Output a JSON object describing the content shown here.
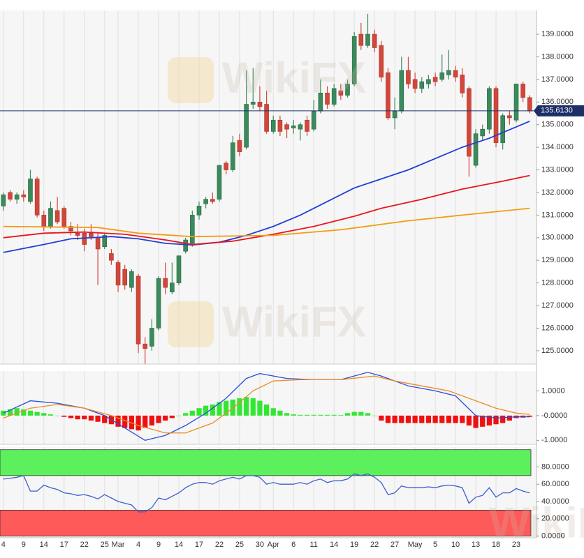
{
  "chart_data": [
    {
      "type": "candlestick",
      "open": [
        131.4,
        132.0,
        131.7,
        131.9,
        131.6,
        132.6,
        131.0,
        130.5,
        131.2,
        131.3,
        130.5,
        130.2,
        130.2,
        130.2,
        130.0,
        129.6,
        129.3,
        128.9,
        128.6,
        127.8,
        128.3,
        125.3,
        125.2,
        126.0,
        128.2,
        127.6,
        128.0,
        129.4,
        129.7,
        131.0,
        131.5,
        131.7,
        131.7,
        133.3,
        133.0,
        134.3,
        134.0,
        135.9,
        136.0,
        135.9,
        134.7,
        135.2,
        135.0,
        134.85,
        134.8,
        135.2,
        134.8,
        135.6,
        136.4,
        135.9,
        136.5,
        136.3,
        136.8,
        139.0,
        138.5,
        139.0,
        138.5,
        137.3,
        135.3,
        135.6,
        137.4,
        137.0,
        136.6,
        136.8,
        137.1,
        137.0,
        137.2,
        137.4,
        137.2,
        136.6,
        133.2,
        134.5,
        134.8,
        136.6,
        134.2,
        135.4,
        135.2,
        136.8,
        136.2
      ],
      "high": [
        132.0,
        132.1,
        132.0,
        132.1,
        133.0,
        132.7,
        131.2,
        131.6,
        131.8,
        131.4,
        130.7,
        130.6,
        130.4,
        130.6,
        130.2,
        130.2,
        129.5,
        129.0,
        128.8,
        128.6,
        128.4,
        125.6,
        126.4,
        128.3,
        128.9,
        128.9,
        129.2,
        130.0,
        131.2,
        131.6,
        131.8,
        132.0,
        133.2,
        133.4,
        134.5,
        134.6,
        137.4,
        137.5,
        136.7,
        136.5,
        135.4,
        135.4,
        135.1,
        135.2,
        135.1,
        135.4,
        136.1,
        137.0,
        136.7,
        136.8,
        136.8,
        137.0,
        139.1,
        139.5,
        139.9,
        139.2,
        138.7,
        137.5,
        136.2,
        138.0,
        138.0,
        137.3,
        137.1,
        137.2,
        137.3,
        138.1,
        138.3,
        137.6,
        137.5,
        136.7,
        134.8,
        135.0,
        136.7,
        136.7,
        135.5,
        135.6,
        136.8,
        136.9,
        136.3
      ],
      "low": [
        131.2,
        131.6,
        131.5,
        131.6,
        131.5,
        130.9,
        130.3,
        130.4,
        130.6,
        130.4,
        130.1,
        129.9,
        129.4,
        129.9,
        127.9,
        129.5,
        128.8,
        127.6,
        127.7,
        127.6,
        124.9,
        124.4,
        125.0,
        125.9,
        127.5,
        127.5,
        127.9,
        129.3,
        129.6,
        130.8,
        131.3,
        131.5,
        131.6,
        132.8,
        132.9,
        133.6,
        133.9,
        135.7,
        135.6,
        134.6,
        134.6,
        134.5,
        134.4,
        134.6,
        134.3,
        134.5,
        134.7,
        135.5,
        135.7,
        135.8,
        136.1,
        136.2,
        136.7,
        138.3,
        138.4,
        138.2,
        136.9,
        135.2,
        134.8,
        135.5,
        136.6,
        136.4,
        136.4,
        136.6,
        136.7,
        136.9,
        137.0,
        136.9,
        136.2,
        132.7,
        133.1,
        134.3,
        134.6,
        134.0,
        133.9,
        135.0,
        135.1,
        136.0,
        135.5
      ],
      "close": [
        131.9,
        131.7,
        131.9,
        131.8,
        132.6,
        131.0,
        130.5,
        131.3,
        130.7,
        130.5,
        130.3,
        130.1,
        129.7,
        130.0,
        129.5,
        130.1,
        129.0,
        127.9,
        127.9,
        128.5,
        125.3,
        125.1,
        126.0,
        128.2,
        127.8,
        128.0,
        129.2,
        129.9,
        131.0,
        131.4,
        131.7,
        131.6,
        133.2,
        133.0,
        134.2,
        133.8,
        135.9,
        136.0,
        135.8,
        134.7,
        135.2,
        134.7,
        134.8,
        134.95,
        135.0,
        134.7,
        135.6,
        136.4,
        135.9,
        136.6,
        136.3,
        136.8,
        138.9,
        138.5,
        139.0,
        138.4,
        137.1,
        135.3,
        135.6,
        137.4,
        136.8,
        136.6,
        136.9,
        137.0,
        136.9,
        137.3,
        137.4,
        137.1,
        136.4,
        133.6,
        134.6,
        134.8,
        136.6,
        134.2,
        135.4,
        135.3,
        136.8,
        136.2,
        135.6
      ],
      "up_color": "#3b8a5c",
      "down_color": "#d2473a",
      "xlim": [
        -0.5,
        79
      ],
      "ylim": [
        124.41,
        140.05
      ],
      "yticks": [
        {
          "value": 125,
          "label": "125.0000"
        },
        {
          "value": 126,
          "label": "126.0000"
        },
        {
          "value": 127,
          "label": "127.0000"
        },
        {
          "value": 128,
          "label": "128.0000"
        },
        {
          "value": 129,
          "label": "129.0000"
        },
        {
          "value": 130,
          "label": "130.0000"
        },
        {
          "value": 131,
          "label": "131.0000"
        },
        {
          "value": 132,
          "label": "132.0000"
        },
        {
          "value": 133,
          "label": "133.0000"
        },
        {
          "value": 134,
          "label": "134.0000"
        },
        {
          "value": 135,
          "label": "135.0000"
        },
        {
          "value": 136,
          "label": "136.0000"
        },
        {
          "value": 137,
          "label": "137.0000"
        },
        {
          "value": 138,
          "label": "138.0000"
        },
        {
          "value": 139,
          "label": "139.0000"
        }
      ],
      "grid": "x",
      "lines": [
        {
          "color": "#1f3fd6",
          "x": [
            0,
            6,
            10,
            16,
            20,
            24,
            28,
            32,
            36,
            40,
            44,
            48,
            52,
            56,
            60,
            64,
            68,
            72,
            76,
            78
          ],
          "values": [
            129.35,
            129.7,
            129.95,
            130.05,
            129.95,
            129.75,
            129.68,
            129.8,
            130.1,
            130.5,
            131.0,
            131.6,
            132.2,
            132.6,
            133.0,
            133.5,
            134.0,
            134.4,
            134.9,
            135.15
          ]
        },
        {
          "color": "#e8161a",
          "x": [
            0,
            6,
            12,
            18,
            24,
            28,
            34,
            40,
            46,
            52,
            56,
            62,
            68,
            74,
            78
          ],
          "values": [
            130.0,
            130.2,
            130.25,
            130.15,
            129.9,
            129.7,
            129.85,
            130.15,
            130.5,
            130.95,
            131.3,
            131.7,
            132.15,
            132.5,
            132.75
          ]
        },
        {
          "color": "#f39c12",
          "x": [
            0,
            14,
            20,
            28,
            40,
            50,
            60,
            68,
            78
          ],
          "values": [
            130.5,
            130.45,
            130.2,
            130.05,
            130.1,
            130.35,
            130.75,
            131.0,
            131.3
          ]
        }
      ],
      "last_price": {
        "value": 135.613,
        "label": "135.6130"
      },
      "watermark": "WikiFX"
    },
    {
      "type": "macd",
      "values": [
        0.2,
        0.25,
        0.3,
        0.25,
        0.2,
        0.15,
        0.1,
        0.05,
        0,
        -0.05,
        -0.1,
        -0.15,
        -0.15,
        -0.2,
        -0.25,
        -0.3,
        -0.35,
        -0.45,
        -0.5,
        -0.55,
        -0.6,
        -0.5,
        -0.4,
        -0.3,
        -0.2,
        -0.1,
        0,
        0.1,
        0.2,
        0.3,
        0.4,
        0.45,
        0.55,
        0.6,
        0.65,
        0.7,
        0.75,
        0.7,
        0.6,
        0.45,
        0.3,
        0.2,
        0.1,
        0.05,
        0.03,
        0.03,
        0.03,
        0.03,
        0.03,
        0.03,
        0.02,
        0.1,
        0.15,
        0.15,
        0.1,
        0,
        -0.2,
        -0.3,
        -0.3,
        -0.3,
        -0.3,
        -0.3,
        -0.3,
        -0.3,
        -0.3,
        -0.3,
        -0.3,
        -0.3,
        -0.3,
        -0.4,
        -0.5,
        -0.45,
        -0.4,
        -0.35,
        -0.3,
        -0.2,
        -0.1,
        -0.08,
        -0.05
      ],
      "pos_color": "#33e633",
      "neg_color": "#ee1111",
      "lines": [
        {
          "color": "#2a4fd8",
          "x": [
            0,
            4,
            8,
            12,
            15,
            18,
            21,
            24,
            27,
            30,
            33,
            36,
            38,
            42,
            46,
            50,
            54,
            56,
            60,
            64,
            67,
            70,
            73,
            76,
            78
          ],
          "values": [
            0.1,
            0.6,
            0.5,
            0.3,
            0.0,
            -0.5,
            -1.0,
            -0.8,
            -0.4,
            0.1,
            0.7,
            1.5,
            1.7,
            1.5,
            1.45,
            1.45,
            1.75,
            1.6,
            1.2,
            1.0,
            0.8,
            0.0,
            -0.1,
            -0.05,
            -0.05
          ]
        },
        {
          "color": "#f08a24",
          "x": [
            0,
            4,
            8,
            12,
            16,
            20,
            24,
            27,
            31,
            34,
            37,
            40,
            44,
            50,
            55,
            58,
            62,
            66,
            70,
            73,
            76,
            78
          ],
          "values": [
            -0.1,
            0.3,
            0.45,
            0.3,
            0.0,
            -0.4,
            -0.7,
            -0.7,
            -0.3,
            0.3,
            1.0,
            1.4,
            1.45,
            1.45,
            1.6,
            1.4,
            1.2,
            1.0,
            0.6,
            0.3,
            0.1,
            0.05
          ]
        }
      ],
      "xlim": [
        -0.5,
        79
      ],
      "ylim": [
        -1.16,
        1.8
      ],
      "yticks": [
        {
          "value": 1,
          "label": "1.0000"
        },
        {
          "value": 0,
          "label": "-0.0000"
        },
        {
          "value": -1,
          "label": "-1.0000"
        }
      ],
      "grid": "x"
    },
    {
      "type": "rsi",
      "values": [
        66,
        67,
        68,
        70,
        52,
        52,
        59,
        56,
        54,
        50,
        49,
        47,
        48,
        46,
        43,
        48,
        44,
        40,
        38,
        36,
        28,
        28,
        33,
        44,
        42,
        46,
        50,
        56,
        60,
        62,
        62,
        60,
        64,
        66,
        68,
        66,
        70,
        70,
        68,
        60,
        62,
        60,
        60,
        60,
        62,
        60,
        64,
        66,
        62,
        64,
        64,
        66,
        72,
        70,
        72,
        68,
        62,
        48,
        50,
        58,
        56,
        56,
        56,
        57,
        56,
        58,
        59,
        58,
        56,
        38,
        45,
        47,
        56,
        45,
        50,
        50,
        55,
        52,
        50
      ],
      "color": "#3a5fd0",
      "bands": [
        {
          "from": 70,
          "to": 100,
          "color": "#5cf05c"
        },
        {
          "from": 0,
          "to": 30,
          "color": "#ff5a5a"
        }
      ],
      "xlim": [
        -0.5,
        79
      ],
      "ylim": [
        -2,
        103
      ],
      "yticks": [
        {
          "value": 80,
          "label": "80.0000"
        },
        {
          "value": 60,
          "label": "60.0000"
        },
        {
          "value": 40,
          "label": "40.0000"
        },
        {
          "value": 20,
          "label": "20.0000"
        },
        {
          "value": 0,
          "label": "0.0000"
        }
      ],
      "xticks": [
        {
          "value": 0,
          "label": "4"
        },
        {
          "value": 3,
          "label": "9"
        },
        {
          "value": 6,
          "label": "14"
        },
        {
          "value": 9,
          "label": "17"
        },
        {
          "value": 12,
          "label": "22"
        },
        {
          "value": 15,
          "label": "25"
        },
        {
          "value": 17,
          "label": "Mar"
        },
        {
          "value": 20,
          "label": "4"
        },
        {
          "value": 23,
          "label": "9"
        },
        {
          "value": 26,
          "label": "14"
        },
        {
          "value": 29,
          "label": "17"
        },
        {
          "value": 32,
          "label": "22"
        },
        {
          "value": 35,
          "label": "25"
        },
        {
          "value": 38,
          "label": "30"
        },
        {
          "value": 40,
          "label": "Apr"
        },
        {
          "value": 43,
          "label": "6"
        },
        {
          "value": 46,
          "label": "11"
        },
        {
          "value": 49,
          "label": "14"
        },
        {
          "value": 52,
          "label": "19"
        },
        {
          "value": 55,
          "label": "22"
        },
        {
          "value": 58,
          "label": "27"
        },
        {
          "value": 61,
          "label": "May"
        },
        {
          "value": 64,
          "label": "5"
        },
        {
          "value": 67,
          "label": "10"
        },
        {
          "value": 70,
          "label": "13"
        },
        {
          "value": 73,
          "label": "18"
        },
        {
          "value": 76,
          "label": "23"
        }
      ],
      "grid": "x"
    }
  ]
}
